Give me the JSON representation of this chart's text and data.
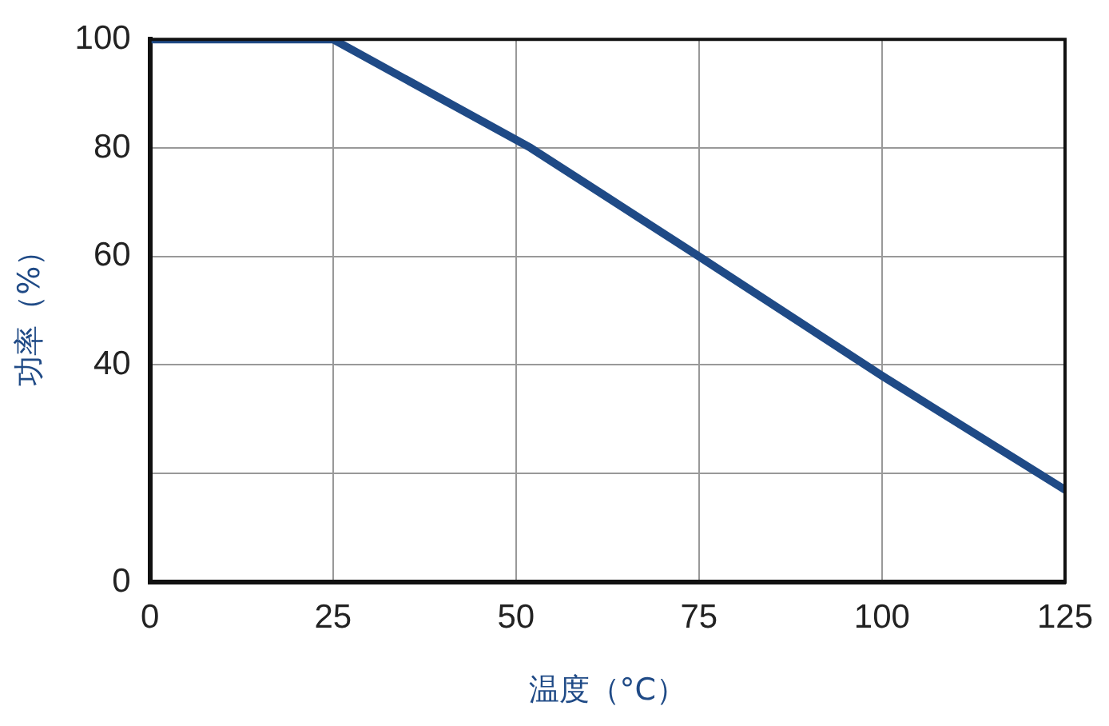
{
  "chart_data": {
    "type": "line",
    "xlabel": "温度（°C）",
    "ylabel": "功率（%）",
    "x": [
      0,
      25,
      52,
      75,
      100,
      125
    ],
    "series": [
      {
        "color": "#1f4a86",
        "values": [
          100,
          100,
          80,
          60,
          38,
          17
        ]
      }
    ],
    "xlim": [
      0,
      125
    ],
    "xticks": [
      0,
      25,
      50,
      75,
      100,
      125
    ],
    "ylim": [
      0,
      100
    ],
    "yticks": [
      0,
      {
        "value": 20,
        "label": null
      },
      40,
      60,
      80,
      100
    ],
    "grid": true,
    "legend": false,
    "marker": "none",
    "line_style": "solid"
  }
}
